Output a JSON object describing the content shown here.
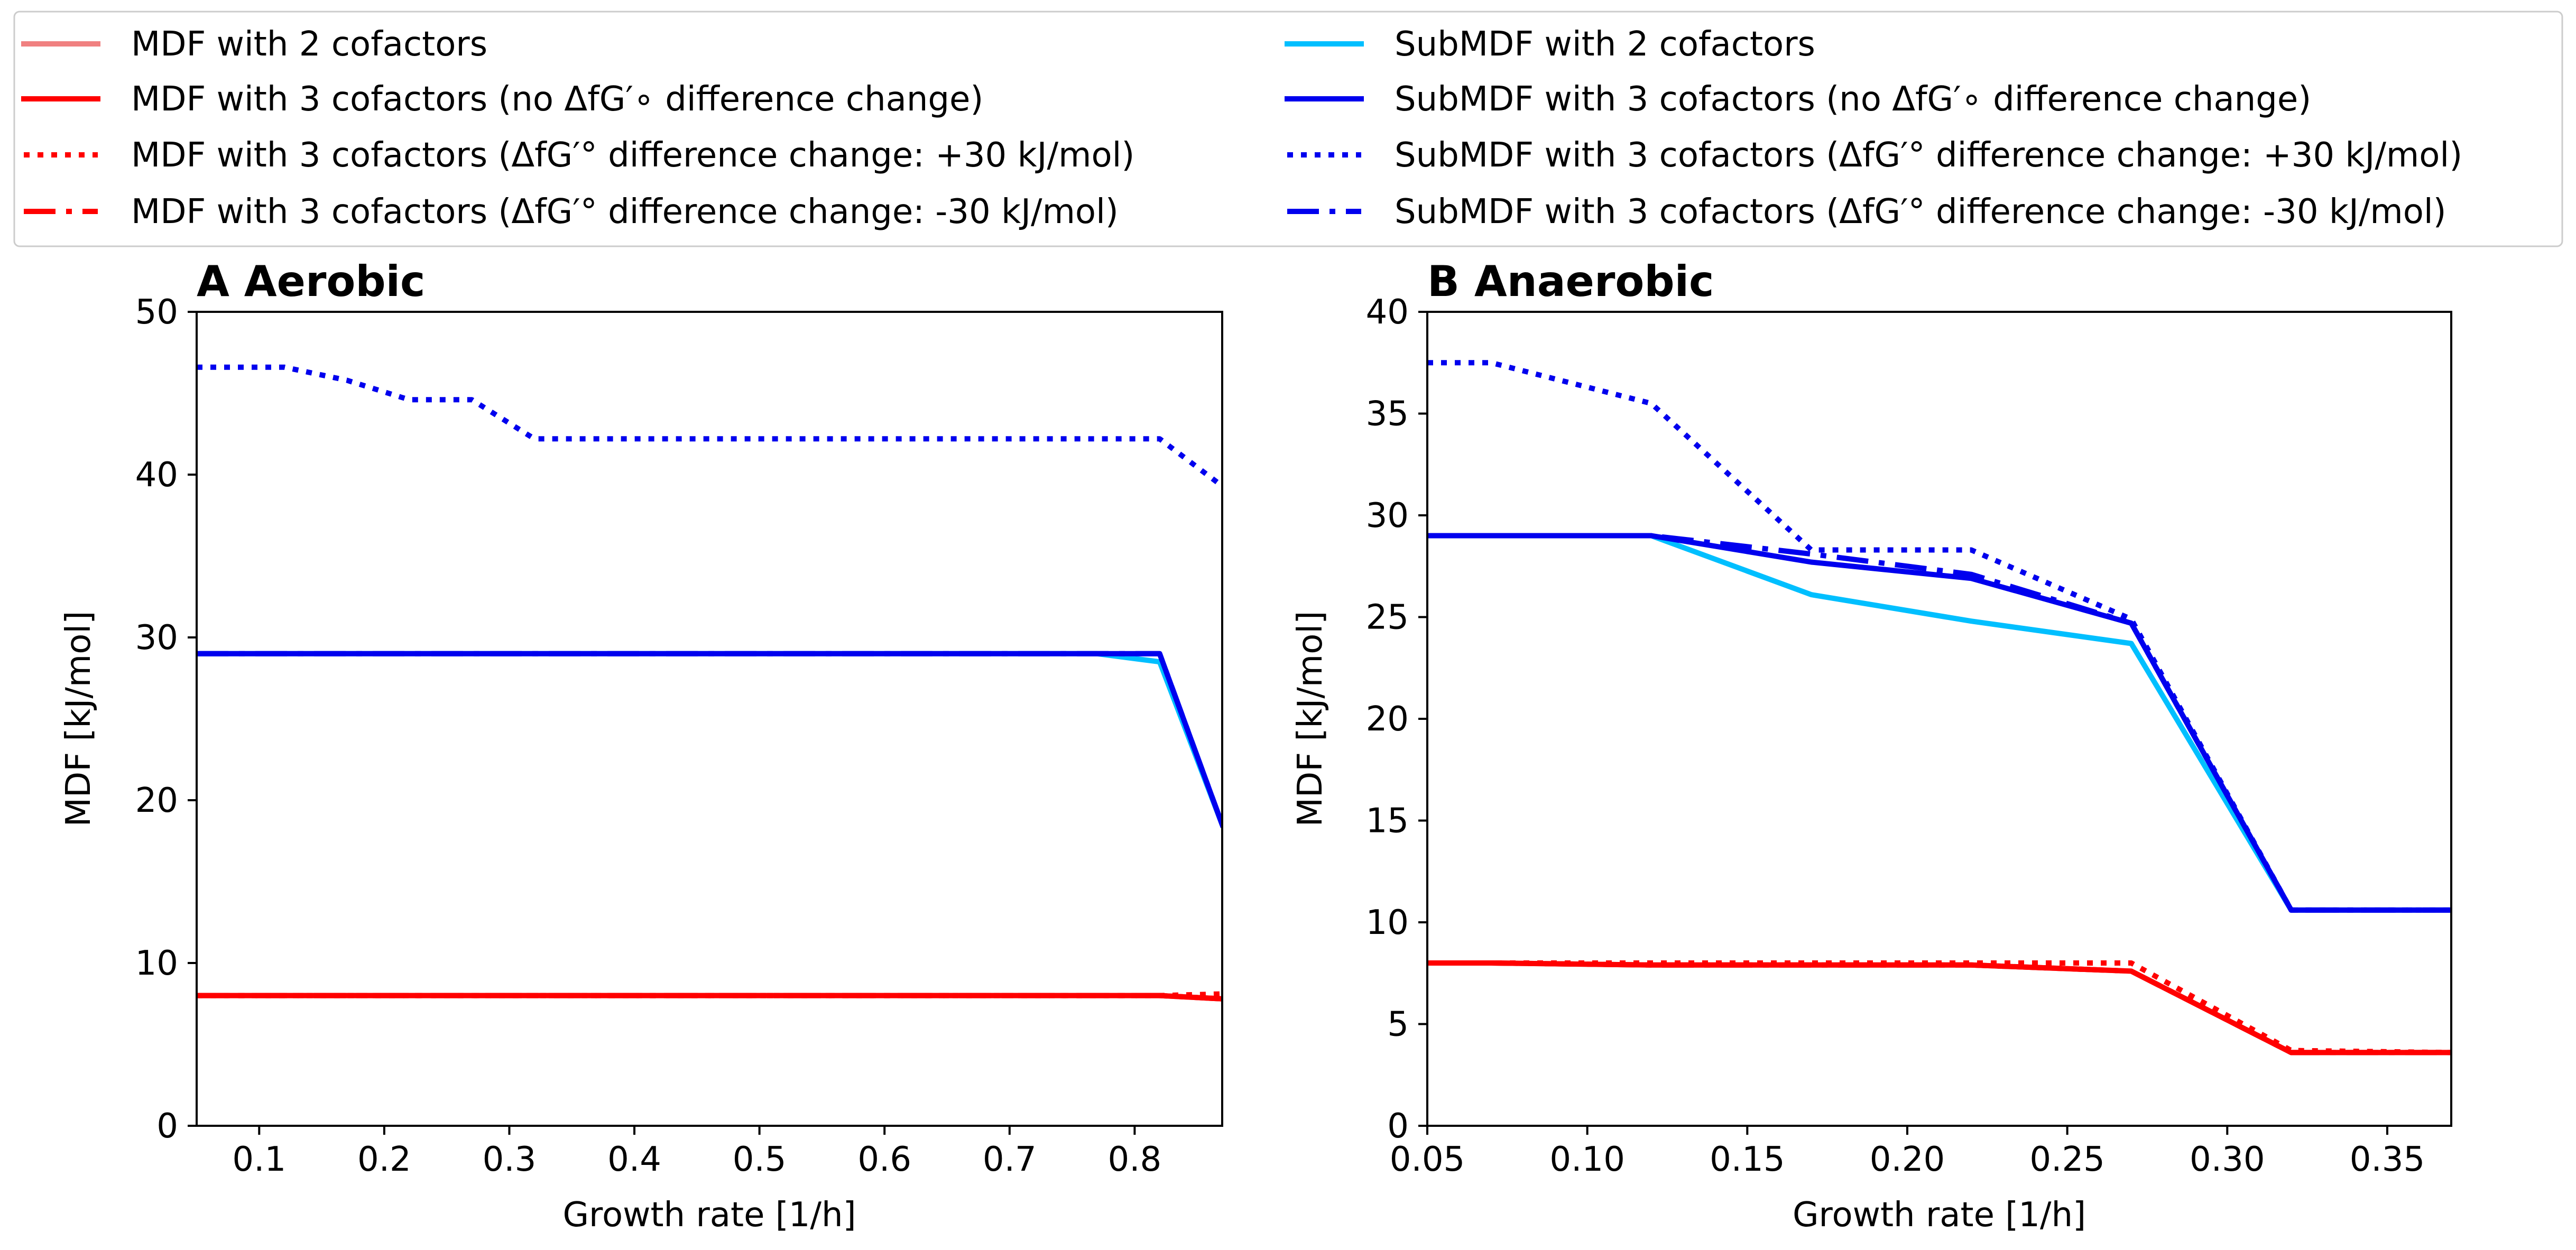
{
  "legend": {
    "placement": "top",
    "columns": 2,
    "items": [
      {
        "label": "MDF with 2 cofactors",
        "color": "#f08080",
        "style": "solid"
      },
      {
        "label": "SubMDF with 2 cofactors",
        "color": "#00bfff",
        "style": "solid"
      },
      {
        "label": "MDF with 3 cofactors (no ΔfG′∘ difference change)",
        "color": "#ff0000",
        "style": "solid"
      },
      {
        "label": "SubMDF with 3 cofactors (no ΔfG′∘ difference change)",
        "color": "#0000ee",
        "style": "solid"
      },
      {
        "label": "MDF with 3 cofactors (ΔfG′° difference change: +30 kJ/mol)",
        "color": "#ff0000",
        "style": "dotted"
      },
      {
        "label": "SubMDF with 3 cofactors (ΔfG′° difference change: +30 kJ/mol)",
        "color": "#0000ee",
        "style": "dotted"
      },
      {
        "label": "MDF with 3 cofactors (ΔfG′° difference change: -30 kJ/mol)",
        "color": "#ff0000",
        "style": "dashdot"
      },
      {
        "label": "SubMDF with 3 cofactors (ΔfG′° difference change: -30 kJ/mol)",
        "color": "#0000ee",
        "style": "dashdot"
      }
    ]
  },
  "chart_data": [
    {
      "type": "line",
      "title": "A Aerobic",
      "xlabel": "Growth rate [1/h]",
      "ylabel": "MDF [kJ/mol]",
      "xlim": [
        0.05,
        0.87
      ],
      "ylim": [
        0,
        50
      ],
      "xticks": [
        0.1,
        0.2,
        0.3,
        0.4,
        0.5,
        0.6,
        0.7,
        0.8
      ],
      "xtick_labels": [
        "0.1",
        "0.2",
        "0.3",
        "0.4",
        "0.5",
        "0.6",
        "0.7",
        "0.8"
      ],
      "yticks": [
        0,
        10,
        20,
        30,
        40,
        50
      ],
      "ytick_labels": [
        "0",
        "10",
        "20",
        "30",
        "40",
        "50"
      ],
      "grid": false,
      "series": [
        {
          "name": "MDF with 2 cofactors",
          "color": "#f08080",
          "style": "solid",
          "x": [
            0.05,
            0.82,
            0.87
          ],
          "y": [
            8.0,
            8.0,
            7.8
          ]
        },
        {
          "name": "MDF with 3 cofactors (no ΔfG′∘ difference change)",
          "color": "#ff0000",
          "style": "solid",
          "x": [
            0.05,
            0.82,
            0.87
          ],
          "y": [
            8.0,
            8.0,
            7.8
          ]
        },
        {
          "name": "MDF with 3 cofactors (ΔfG′° difference change: +30 kJ/mol)",
          "color": "#ff0000",
          "style": "dotted",
          "x": [
            0.05,
            0.82,
            0.87
          ],
          "y": [
            8.0,
            8.0,
            8.1
          ]
        },
        {
          "name": "MDF with 3 cofactors (ΔfG′° difference change: -30 kJ/mol)",
          "color": "#ff0000",
          "style": "dashdot",
          "x": [
            0.05,
            0.82,
            0.87
          ],
          "y": [
            8.0,
            8.0,
            7.8
          ]
        },
        {
          "name": "SubMDF with 2 cofactors",
          "color": "#00bfff",
          "style": "solid",
          "x": [
            0.05,
            0.77,
            0.82,
            0.87
          ],
          "y": [
            29.0,
            29.0,
            28.5,
            18.5
          ]
        },
        {
          "name": "SubMDF with 3 cofactors (no ΔfG′∘ difference change)",
          "color": "#0000ee",
          "style": "solid",
          "x": [
            0.05,
            0.82,
            0.87
          ],
          "y": [
            29.0,
            29.0,
            18.5
          ]
        },
        {
          "name": "SubMDF with 3 cofactors (ΔfG′° difference change: +30 kJ/mol)",
          "color": "#0000ee",
          "style": "dotted",
          "x": [
            0.05,
            0.07,
            0.12,
            0.17,
            0.22,
            0.27,
            0.32,
            0.82,
            0.87
          ],
          "y": [
            46.6,
            46.6,
            46.6,
            45.8,
            44.6,
            44.6,
            42.2,
            42.2,
            39.3
          ]
        },
        {
          "name": "SubMDF with 3 cofactors (ΔfG′° difference change: -30 kJ/mol)",
          "color": "#0000ee",
          "style": "dashdot",
          "x": [
            0.05,
            0.82,
            0.87
          ],
          "y": [
            29.0,
            29.0,
            18.5
          ]
        }
      ]
    },
    {
      "type": "line",
      "title": "B Anaerobic",
      "xlabel": "Growth rate [1/h]",
      "ylabel": "MDF [kJ/mol]",
      "xlim": [
        0.05,
        0.37
      ],
      "ylim": [
        0,
        40
      ],
      "xticks": [
        0.05,
        0.1,
        0.15,
        0.2,
        0.25,
        0.3,
        0.35
      ],
      "xtick_labels": [
        "0.05",
        "0.10",
        "0.15",
        "0.20",
        "0.25",
        "0.30",
        "0.35"
      ],
      "yticks": [
        0,
        5,
        10,
        15,
        20,
        25,
        30,
        35,
        40
      ],
      "ytick_labels": [
        "0",
        "5",
        "10",
        "15",
        "20",
        "25",
        "30",
        "35",
        "40"
      ],
      "grid": false,
      "series": [
        {
          "name": "MDF with 2 cofactors",
          "color": "#f08080",
          "style": "solid",
          "x": [
            0.05,
            0.07,
            0.12,
            0.17,
            0.22,
            0.27,
            0.32,
            0.37
          ],
          "y": [
            8.0,
            8.0,
            7.9,
            7.9,
            7.9,
            7.6,
            3.6,
            3.6
          ]
        },
        {
          "name": "MDF with 3 cofactors (no ΔfG′∘ difference change)",
          "color": "#ff0000",
          "style": "solid",
          "x": [
            0.05,
            0.07,
            0.12,
            0.17,
            0.22,
            0.27,
            0.32,
            0.37
          ],
          "y": [
            8.0,
            8.0,
            7.9,
            7.9,
            7.9,
            7.6,
            3.6,
            3.6
          ]
        },
        {
          "name": "MDF with 3 cofactors (ΔfG′° difference change: +30 kJ/mol)",
          "color": "#ff0000",
          "style": "dotted",
          "x": [
            0.05,
            0.07,
            0.12,
            0.17,
            0.22,
            0.27,
            0.32,
            0.37
          ],
          "y": [
            8.0,
            8.0,
            8.0,
            8.0,
            8.0,
            8.0,
            3.7,
            3.6
          ]
        },
        {
          "name": "MDF with 3 cofactors (ΔfG′° difference change: -30 kJ/mol)",
          "color": "#ff0000",
          "style": "dashdot",
          "x": [
            0.05,
            0.07,
            0.12,
            0.17,
            0.22,
            0.27,
            0.32,
            0.37
          ],
          "y": [
            8.0,
            8.0,
            7.9,
            7.9,
            7.9,
            7.6,
            3.6,
            3.6
          ]
        },
        {
          "name": "SubMDF with 2 cofactors",
          "color": "#00bfff",
          "style": "solid",
          "x": [
            0.05,
            0.12,
            0.17,
            0.22,
            0.27,
            0.32,
            0.37
          ],
          "y": [
            29.0,
            29.0,
            26.1,
            24.8,
            23.7,
            10.6,
            10.6
          ]
        },
        {
          "name": "SubMDF with 3 cofactors (no ΔfG′∘ difference change)",
          "color": "#0000ee",
          "style": "solid",
          "x": [
            0.05,
            0.12,
            0.17,
            0.22,
            0.27,
            0.32,
            0.37
          ],
          "y": [
            29.0,
            29.0,
            27.7,
            26.9,
            24.7,
            10.6,
            10.6
          ]
        },
        {
          "name": "SubMDF with 3 cofactors (ΔfG′° difference change: +30 kJ/mol)",
          "color": "#0000ee",
          "style": "dotted",
          "x": [
            0.05,
            0.07,
            0.12,
            0.17,
            0.22,
            0.27,
            0.32,
            0.37
          ],
          "y": [
            37.5,
            37.5,
            35.5,
            28.3,
            28.3,
            24.9,
            10.6,
            10.6
          ]
        },
        {
          "name": "SubMDF with 3 cofactors (ΔfG′° difference change: -30 kJ/mol)",
          "color": "#0000ee",
          "style": "dashdot",
          "x": [
            0.05,
            0.12,
            0.17,
            0.22,
            0.27,
            0.32,
            0.37
          ],
          "y": [
            29.0,
            29.0,
            28.1,
            27.1,
            24.7,
            10.6,
            10.6
          ]
        }
      ]
    }
  ]
}
